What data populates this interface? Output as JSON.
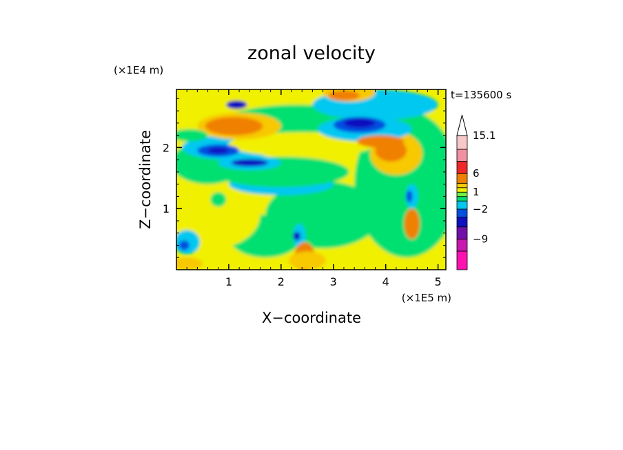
{
  "chart_data": {
    "type": "heatmap",
    "title": "zonal velocity",
    "xlabel": "X−coordinate",
    "ylabel": "Z−coordinate",
    "x_unit": "(×1E5 m)",
    "y_unit": "(×1E4 m)",
    "time_label": "t=135600 s",
    "xlim": [
      0,
      5.15
    ],
    "ylim": [
      0,
      2.95
    ],
    "x_ticks": [
      {
        "v": 1,
        "label": "1"
      },
      {
        "v": 2,
        "label": "2"
      },
      {
        "v": 3,
        "label": "3"
      },
      {
        "v": 4,
        "label": "4"
      },
      {
        "v": 5,
        "label": "5"
      }
    ],
    "y_ticks": [
      {
        "v": 1,
        "label": "1"
      },
      {
        "v": 2,
        "label": "2"
      }
    ],
    "colorbar": {
      "levels": [
        -15.1,
        -12,
        -9,
        -6,
        -4,
        -2,
        -1,
        0,
        1,
        2,
        4,
        6,
        9,
        12,
        15.1
      ],
      "colors": [
        "#ff10b0",
        "#c818b0",
        "#7010a8",
        "#1010c0",
        "#0050e0",
        "#00c8f0",
        "#00e070",
        "#70f040",
        "#f0f000",
        "#f8c800",
        "#f08000",
        "#f02828",
        "#f090a0",
        "#f8c8c8"
      ],
      "extend_max_color": "#ffffff",
      "labels": [
        {
          "v": 15.1,
          "label": "15.1"
        },
        {
          "v": 6,
          "label": "6"
        },
        {
          "v": 1,
          "label": "1"
        },
        {
          "v": -2,
          "label": "−2"
        },
        {
          "v": -9,
          "label": "−9"
        }
      ]
    },
    "field_regions": [
      {
        "color": "#f0f000",
        "x": 2.6,
        "z": 1.45,
        "rx": 3.6,
        "rz": 1.5
      },
      {
        "color": "#00e070",
        "x": 4.4,
        "z": 1.4,
        "rx": 1.0,
        "rz": 1.2
      },
      {
        "color": "#00e070",
        "x": 2.8,
        "z": 0.9,
        "rx": 1.1,
        "rz": 0.55
      },
      {
        "color": "#00e070",
        "x": 1.7,
        "z": 0.55,
        "rx": 0.7,
        "rz": 0.35
      },
      {
        "color": "#f0f000",
        "x": 0.7,
        "z": 0.9,
        "rx": 0.9,
        "rz": 0.55
      },
      {
        "color": "#00e070",
        "x": 0.6,
        "z": 1.75,
        "rx": 0.7,
        "rz": 0.35
      },
      {
        "color": "#00c8f0",
        "x": 1.0,
        "z": 2.0,
        "rx": 0.9,
        "rz": 0.2
      },
      {
        "color": "#00e070",
        "x": 2.3,
        "z": 2.35,
        "rx": 1.5,
        "rz": 0.35
      },
      {
        "color": "#00c8f0",
        "x": 3.8,
        "z": 2.7,
        "rx": 1.2,
        "rz": 0.25
      },
      {
        "color": "#00c8f0",
        "x": 2.0,
        "z": 1.4,
        "rx": 1.0,
        "rz": 0.18
      },
      {
        "color": "#00e070",
        "x": 2.0,
        "z": 1.6,
        "rx": 1.3,
        "rz": 0.25
      },
      {
        "color": "#f0f000",
        "x": 2.4,
        "z": 2.05,
        "rx": 1.4,
        "rz": 0.2
      },
      {
        "color": "#f8c800",
        "x": 1.2,
        "z": 2.35,
        "rx": 0.8,
        "rz": 0.22
      },
      {
        "color": "#f08000",
        "x": 1.1,
        "z": 2.35,
        "rx": 0.55,
        "rz": 0.15
      },
      {
        "color": "#f8c800",
        "x": 3.3,
        "z": 2.9,
        "rx": 0.5,
        "rz": 0.15
      },
      {
        "color": "#f08000",
        "x": 3.2,
        "z": 2.85,
        "rx": 0.3,
        "rz": 0.08
      },
      {
        "color": "#f8c800",
        "x": 4.2,
        "z": 1.9,
        "rx": 0.5,
        "rz": 0.35
      },
      {
        "color": "#f08000",
        "x": 4.1,
        "z": 1.95,
        "rx": 0.3,
        "rz": 0.18
      },
      {
        "color": "#00c8f0",
        "x": 3.6,
        "z": 2.3,
        "rx": 0.9,
        "rz": 0.2
      },
      {
        "color": "#0050e0",
        "x": 3.5,
        "z": 2.37,
        "rx": 0.5,
        "rz": 0.13
      },
      {
        "color": "#1010c0",
        "x": 3.5,
        "z": 2.4,
        "rx": 0.3,
        "rz": 0.08
      },
      {
        "color": "#00c8f0",
        "x": 1.4,
        "z": 1.75,
        "rx": 0.6,
        "rz": 0.12
      },
      {
        "color": "#1010c0",
        "x": 1.4,
        "z": 1.75,
        "rx": 0.35,
        "rz": 0.06
      },
      {
        "color": "#0050e0",
        "x": 0.8,
        "z": 1.95,
        "rx": 0.4,
        "rz": 0.1
      },
      {
        "color": "#1010c0",
        "x": 0.8,
        "z": 1.95,
        "rx": 0.2,
        "rz": 0.05
      },
      {
        "color": "#1010c0",
        "x": 1.15,
        "z": 2.7,
        "rx": 0.2,
        "rz": 0.07
      },
      {
        "color": "#00c8f0",
        "x": 0.2,
        "z": 0.45,
        "rx": 0.25,
        "rz": 0.2
      },
      {
        "color": "#0050e0",
        "x": 0.15,
        "z": 0.4,
        "rx": 0.1,
        "rz": 0.08
      },
      {
        "color": "#00c8f0",
        "x": 2.35,
        "z": 0.55,
        "rx": 0.12,
        "rz": 0.2
      },
      {
        "color": "#1010c0",
        "x": 2.3,
        "z": 0.55,
        "rx": 0.07,
        "rz": 0.07
      },
      {
        "color": "#f08000",
        "x": 2.45,
        "z": 0.2,
        "rx": 0.2,
        "rz": 0.25
      },
      {
        "color": "#f8c800",
        "x": 2.5,
        "z": 0.15,
        "rx": 0.35,
        "rz": 0.15
      },
      {
        "color": "#f08000",
        "x": 4.5,
        "z": 0.75,
        "rx": 0.15,
        "rz": 0.25
      },
      {
        "color": "#00c8f0",
        "x": 4.5,
        "z": 1.2,
        "rx": 0.12,
        "rz": 0.2
      },
      {
        "color": "#0050e0",
        "x": 4.45,
        "z": 1.2,
        "rx": 0.06,
        "rz": 0.1
      },
      {
        "color": "#00e070",
        "x": 0.8,
        "z": 1.15,
        "rx": 0.15,
        "rz": 0.12
      },
      {
        "color": "#f8c800",
        "x": 0.2,
        "z": 0.1,
        "rx": 0.3,
        "rz": 0.1
      },
      {
        "color": "#00e070",
        "x": 0.25,
        "z": 2.2,
        "rx": 0.35,
        "rz": 0.1
      },
      {
        "color": "#f08000",
        "x": 3.9,
        "z": 2.1,
        "rx": 0.45,
        "rz": 0.1
      }
    ]
  }
}
